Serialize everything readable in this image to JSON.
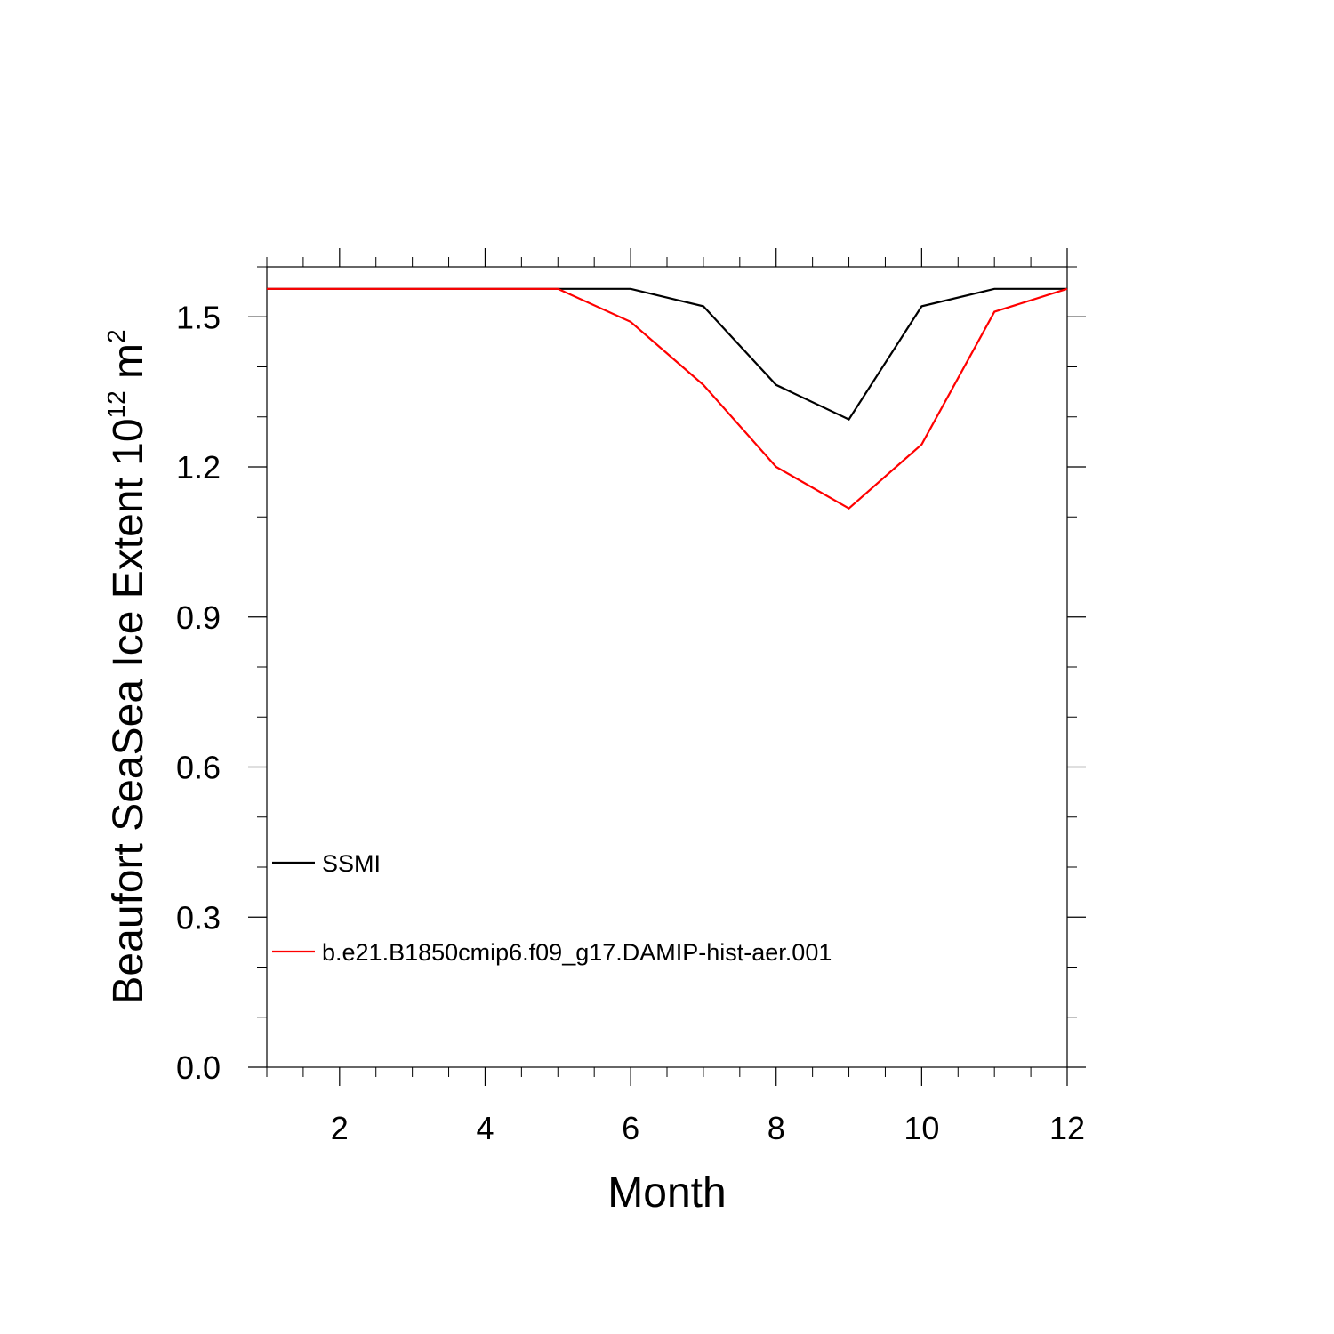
{
  "chart_data": {
    "type": "line",
    "xlabel": "Month",
    "ylabel_main": "Beaufort SeaSea Ice Extent 10",
    "ylabel_sup": "12",
    "ylabel_unit": " m",
    "ylabel_unit_sup": "2",
    "xlim": [
      1,
      12
    ],
    "ylim": [
      0.0,
      1.6
    ],
    "x_ticks": [
      2,
      4,
      6,
      8,
      10,
      12
    ],
    "x_tick_labels": [
      "2",
      "4",
      "6",
      "8",
      "10",
      "12"
    ],
    "y_ticks": [
      0.0,
      0.3,
      0.6,
      0.9,
      1.2,
      1.5
    ],
    "y_tick_labels": [
      "0.0",
      "0.3",
      "0.6",
      "0.9",
      "1.2",
      "1.5"
    ],
    "grid": false,
    "legend_position": "bottom-left",
    "x": [
      1,
      2,
      3,
      4,
      5,
      6,
      7,
      8,
      9,
      10,
      11,
      12
    ],
    "series": [
      {
        "name": "SSMI",
        "color": "#000000",
        "values": [
          1.556,
          1.556,
          1.556,
          1.556,
          1.556,
          1.556,
          1.521,
          1.364,
          1.295,
          1.521,
          1.556,
          1.556
        ]
      },
      {
        "name": "b.e21.B1850cmip6.f09_g17.DAMIP-hist-aer.001",
        "color": "#ff0000",
        "values": [
          1.556,
          1.556,
          1.556,
          1.556,
          1.556,
          1.49,
          1.364,
          1.2,
          1.117,
          1.245,
          1.51,
          1.556
        ]
      }
    ]
  }
}
